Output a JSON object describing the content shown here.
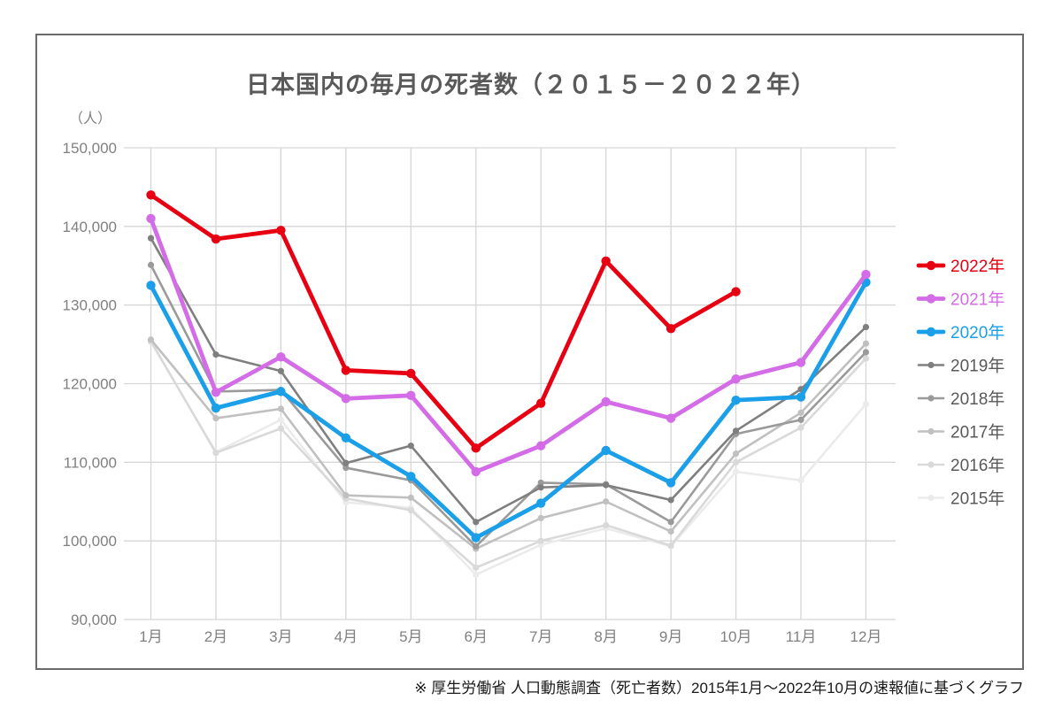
{
  "title": "日本国内の毎月の死者数（２０１５－２０２２年）",
  "y_axis_unit": "（人）",
  "footnote": "※ 厚生労働省 人口動態調査（死亡者数）2015年1月～2022年10月の速報値に基づくグラフ",
  "palette": {
    "grid": "#d6d6d6",
    "axis_text": "#808080",
    "title_text": "#595959",
    "legend_gray_text": "#595959",
    "frame_border": "#6a6a6a"
  },
  "chart_data": {
    "type": "line",
    "title": "日本国内の毎月の死者数（２０１５－２０２２年）",
    "xlabel": "",
    "ylabel": "（人）",
    "ylim": [
      90000,
      150000
    ],
    "grid": true,
    "legend_position": "right",
    "categories": [
      "1月",
      "2月",
      "3月",
      "4月",
      "5月",
      "6月",
      "7月",
      "8月",
      "9月",
      "10月",
      "11月",
      "12月"
    ],
    "y_ticks": [
      {
        "value": 150000,
        "label": "150,000"
      },
      {
        "value": 140000,
        "label": "140,000"
      },
      {
        "value": 130000,
        "label": "130,000"
      },
      {
        "value": 120000,
        "label": "120,000"
      },
      {
        "value": 110000,
        "label": "110,000"
      },
      {
        "value": 100000,
        "label": "100,000"
      },
      {
        "value": 90000,
        "label": "90,000"
      }
    ],
    "series": [
      {
        "name": "2022年",
        "color": "#e60012",
        "text_color": "#e60012",
        "line_width": 4.8,
        "marker_radius": 5.2,
        "values": [
          144000,
          138400,
          139500,
          121700,
          121300,
          111800,
          117500,
          135600,
          127000,
          131700
        ]
      },
      {
        "name": "2021年",
        "color": "#d36ce6",
        "text_color": "#d36ce6",
        "line_width": 4.8,
        "marker_radius": 5.2,
        "values": [
          141000,
          118900,
          123400,
          118100,
          118500,
          108800,
          112100,
          117700,
          115600,
          120600,
          122700,
          133900
        ]
      },
      {
        "name": "2020年",
        "color": "#1b9fe8",
        "text_color": "#1b9fe8",
        "line_width": 4.8,
        "marker_radius": 5.2,
        "values": [
          132500,
          116900,
          119000,
          113100,
          108200,
          100400,
          104800,
          111500,
          107400,
          117900,
          118300,
          132900
        ]
      },
      {
        "name": "2019年",
        "color": "#7f7f7f",
        "text_color": "#595959",
        "line_width": 2.6,
        "marker_radius": 3.6,
        "values": [
          138500,
          123700,
          121600,
          109900,
          112100,
          102400,
          106800,
          107100,
          105200,
          114000,
          119300,
          127200
        ]
      },
      {
        "name": "2018年",
        "color": "#9a9a9a",
        "text_color": "#595959",
        "line_width": 2.6,
        "marker_radius": 3.6,
        "values": [
          135100,
          119000,
          119200,
          109300,
          107700,
          99300,
          107400,
          107200,
          102400,
          113600,
          115400,
          124000
        ]
      },
      {
        "name": "2017年",
        "color": "#c0c0c0",
        "text_color": "#595959",
        "line_width": 2.6,
        "marker_radius": 3.6,
        "values": [
          125600,
          115600,
          116800,
          105800,
          105500,
          99000,
          102900,
          105000,
          101200,
          111100,
          116300,
          125100
        ]
      },
      {
        "name": "2016年",
        "color": "#d9d9d9",
        "text_color": "#595959",
        "line_width": 2.6,
        "marker_radius": 3.6,
        "values": [
          125400,
          111200,
          114300,
          105400,
          103900,
          96600,
          100000,
          102000,
          99400,
          110000,
          114400,
          123200
        ]
      },
      {
        "name": "2015年",
        "color": "#ebebeb",
        "text_color": "#595959",
        "line_width": 2.6,
        "marker_radius": 3.6,
        "values": [
          125300,
          111300,
          115400,
          104900,
          104200,
          95700,
          99500,
          101600,
          99300,
          108800,
          107700,
          117400
        ]
      }
    ]
  },
  "layout_note": ""
}
